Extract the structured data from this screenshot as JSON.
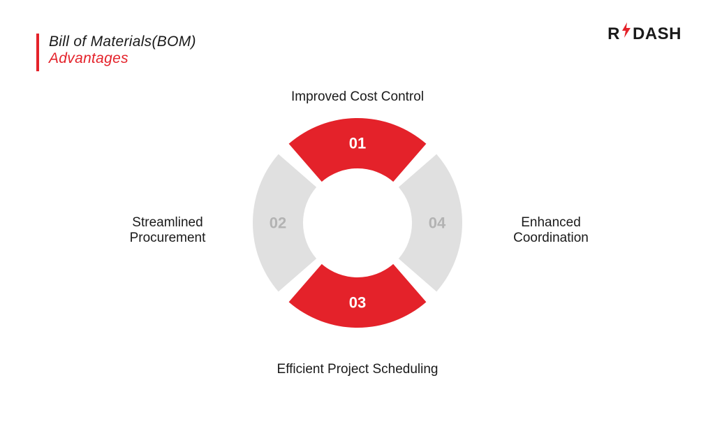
{
  "title": {
    "line1": "Bill of Materials(BOM)",
    "line2": "Advantages",
    "line1_color": "#1a1a1a",
    "line2_color": "#e4222a",
    "bar_color": "#e4222a",
    "fontsize": 21
  },
  "logo": {
    "text_before": "R",
    "text_after": "DASH",
    "bolt_color": "#e4222a"
  },
  "ring_chart": {
    "type": "radial-segments",
    "center_label_fontsize": 19,
    "center_label_color": "#1a1a1a",
    "outer_radius": 150,
    "inner_radius": 78,
    "gap_degrees": 8,
    "number_fontsize": 22,
    "segments": [
      {
        "id": "01",
        "label": "Improved Cost Control",
        "position": "top",
        "fill": "#e4222a",
        "num_color": "#ffffff"
      },
      {
        "id": "02",
        "label": "Streamlined Procurement",
        "position": "left",
        "fill": "#e0e0e0",
        "num_color": "#b3b3b3"
      },
      {
        "id": "03",
        "label": "Efficient Project Scheduling",
        "position": "bottom",
        "fill": "#e4222a",
        "num_color": "#ffffff"
      },
      {
        "id": "04",
        "label": "Enhanced Coordination",
        "position": "right",
        "fill": "#e0e0e0",
        "num_color": "#b3b3b3"
      }
    ],
    "background_color": "#ffffff"
  }
}
